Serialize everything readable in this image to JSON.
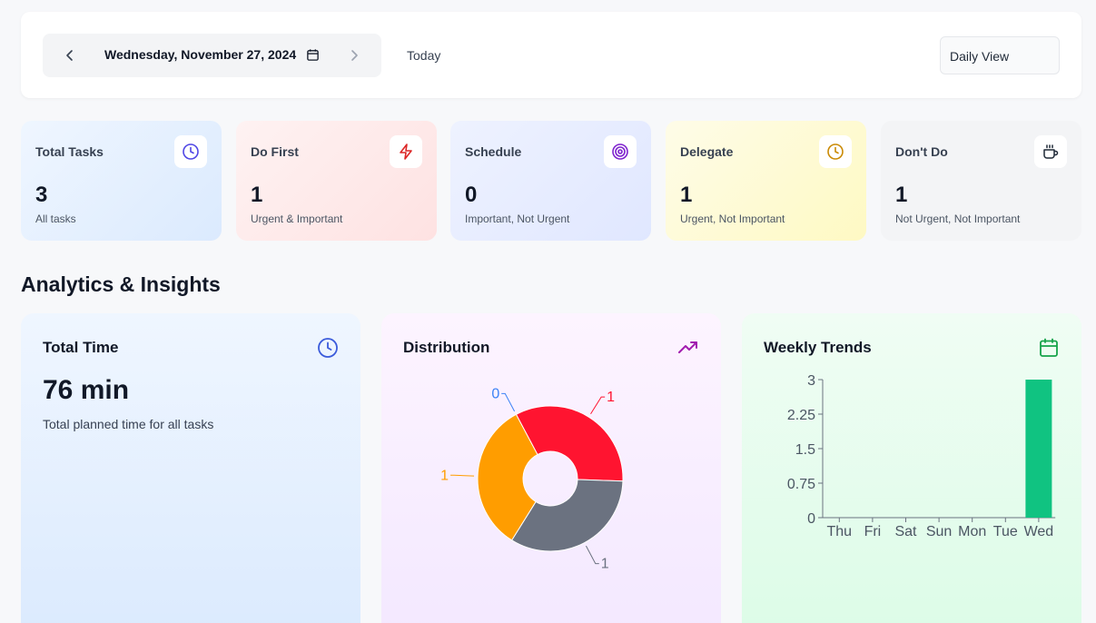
{
  "header": {
    "date_label": "Wednesday, November 27, 2024",
    "today_label": "Today",
    "view_label": "Daily View"
  },
  "stats": [
    {
      "title": "Total Tasks",
      "value": "3",
      "subtitle": "All tasks",
      "icon": "clock-icon",
      "color": "#4f46e5"
    },
    {
      "title": "Do First",
      "value": "1",
      "subtitle": "Urgent & Important",
      "icon": "lightning-icon",
      "color": "#dc2626"
    },
    {
      "title": "Schedule",
      "value": "0",
      "subtitle": "Important, Not Urgent",
      "icon": "target-icon",
      "color": "#7e22ce"
    },
    {
      "title": "Delegate",
      "value": "1",
      "subtitle": "Urgent, Not Important",
      "icon": "clock-icon",
      "color": "#ca8a04"
    },
    {
      "title": "Don't Do",
      "value": "1",
      "subtitle": "Not Urgent, Not Important",
      "icon": "coffee-icon",
      "color": "#1f2937"
    }
  ],
  "section_title": "Analytics & Insights",
  "total_time": {
    "title": "Total Time",
    "value": "76 min",
    "subtitle": "Total planned time for all tasks"
  },
  "distribution": {
    "title": "Distribution"
  },
  "weekly": {
    "title": "Weekly Trends"
  },
  "chart_data": [
    {
      "type": "pie",
      "donut": true,
      "slices": [
        {
          "value": 1,
          "label": "1",
          "color": "#ff1430"
        },
        {
          "value": 1,
          "label": "1",
          "color": "#6b7280"
        },
        {
          "value": 1,
          "label": "1",
          "color": "#ff9d00"
        },
        {
          "value": 0,
          "label": "0",
          "color": "#3b82f6"
        }
      ]
    },
    {
      "type": "bar",
      "categories": [
        "Thu",
        "Fri",
        "Sat",
        "Sun",
        "Mon",
        "Tue",
        "Wed"
      ],
      "values": [
        0,
        0,
        0,
        0,
        0,
        0,
        3
      ],
      "yticks": [
        "0",
        "0.75",
        "1.5",
        "2.25",
        "3"
      ],
      "ylim": [
        0,
        3
      ],
      "bar_color": "#10c381"
    }
  ]
}
